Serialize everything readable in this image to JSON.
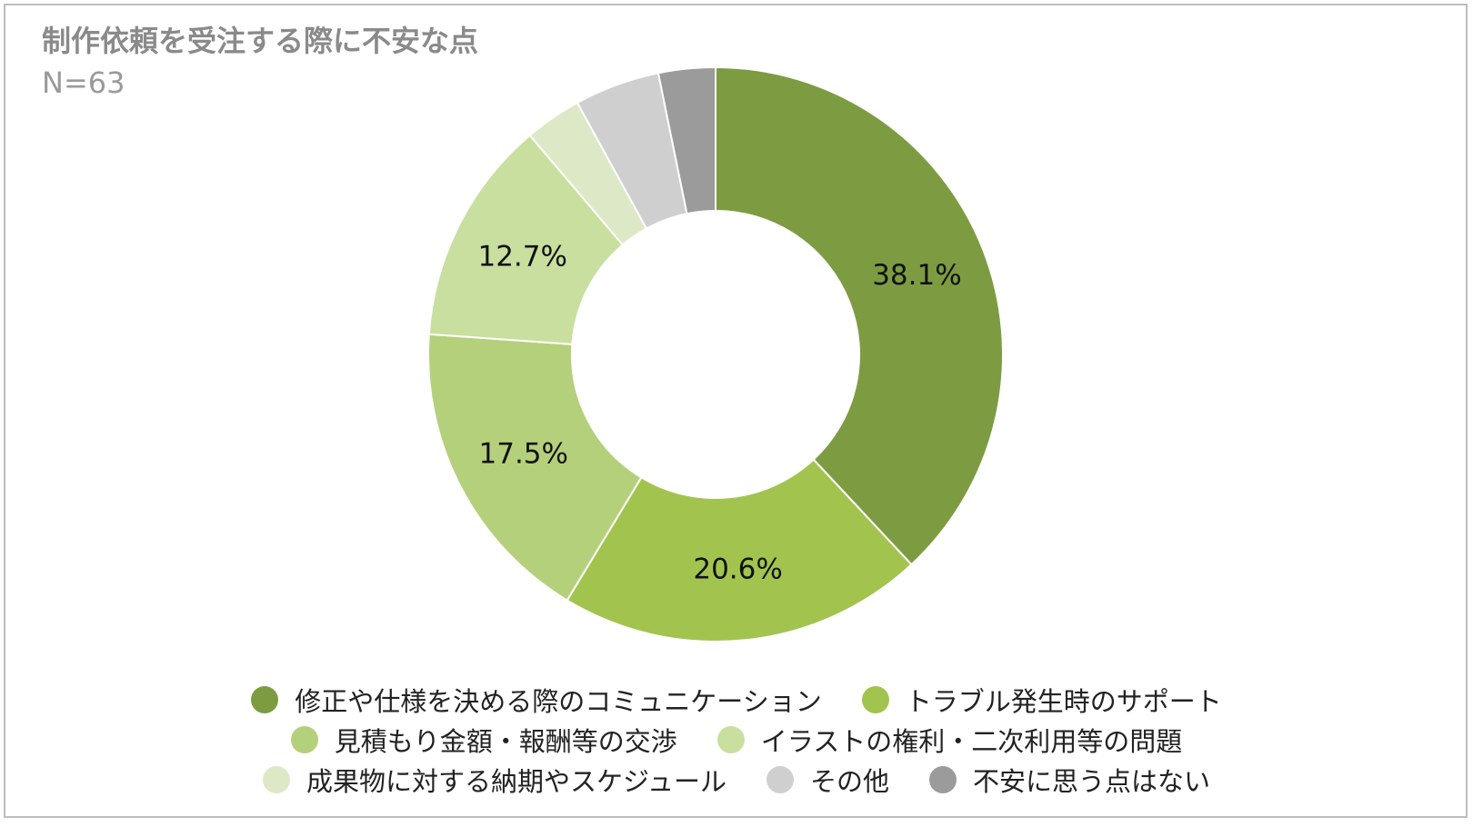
{
  "title": "制作依頼を受注する際に不安な点",
  "subtitle": "N=63",
  "chart_data": {
    "type": "pie",
    "donut": true,
    "title": "制作依頼を受注する際に不安な点",
    "subtitle": "N=63",
    "legend_position": "bottom",
    "slices": [
      {
        "label": "修正や仕様を決める際のコミュニケーション",
        "value": 38.1,
        "display": "38.1%",
        "color": "#7d9c42"
      },
      {
        "label": "トラブル発生時のサポート",
        "value": 20.6,
        "display": "20.6%",
        "color": "#a2c44f"
      },
      {
        "label": "見積もり金額・報酬等の交渉",
        "value": 17.5,
        "display": "17.5%",
        "color": "#b5d07b"
      },
      {
        "label": "イラストの権利・二次利用等の問題",
        "value": 12.7,
        "display": "12.7%",
        "color": "#c8dfa0"
      },
      {
        "label": "成果物に対する納期やスケジュール",
        "value": 3.2,
        "display": "",
        "color": "#dde9c6"
      },
      {
        "label": "その他",
        "value": 4.8,
        "display": "",
        "color": "#cfcfcf"
      },
      {
        "label": "不安に思う点はない",
        "value": 3.2,
        "display": "",
        "color": "#9b9b9b"
      }
    ]
  }
}
